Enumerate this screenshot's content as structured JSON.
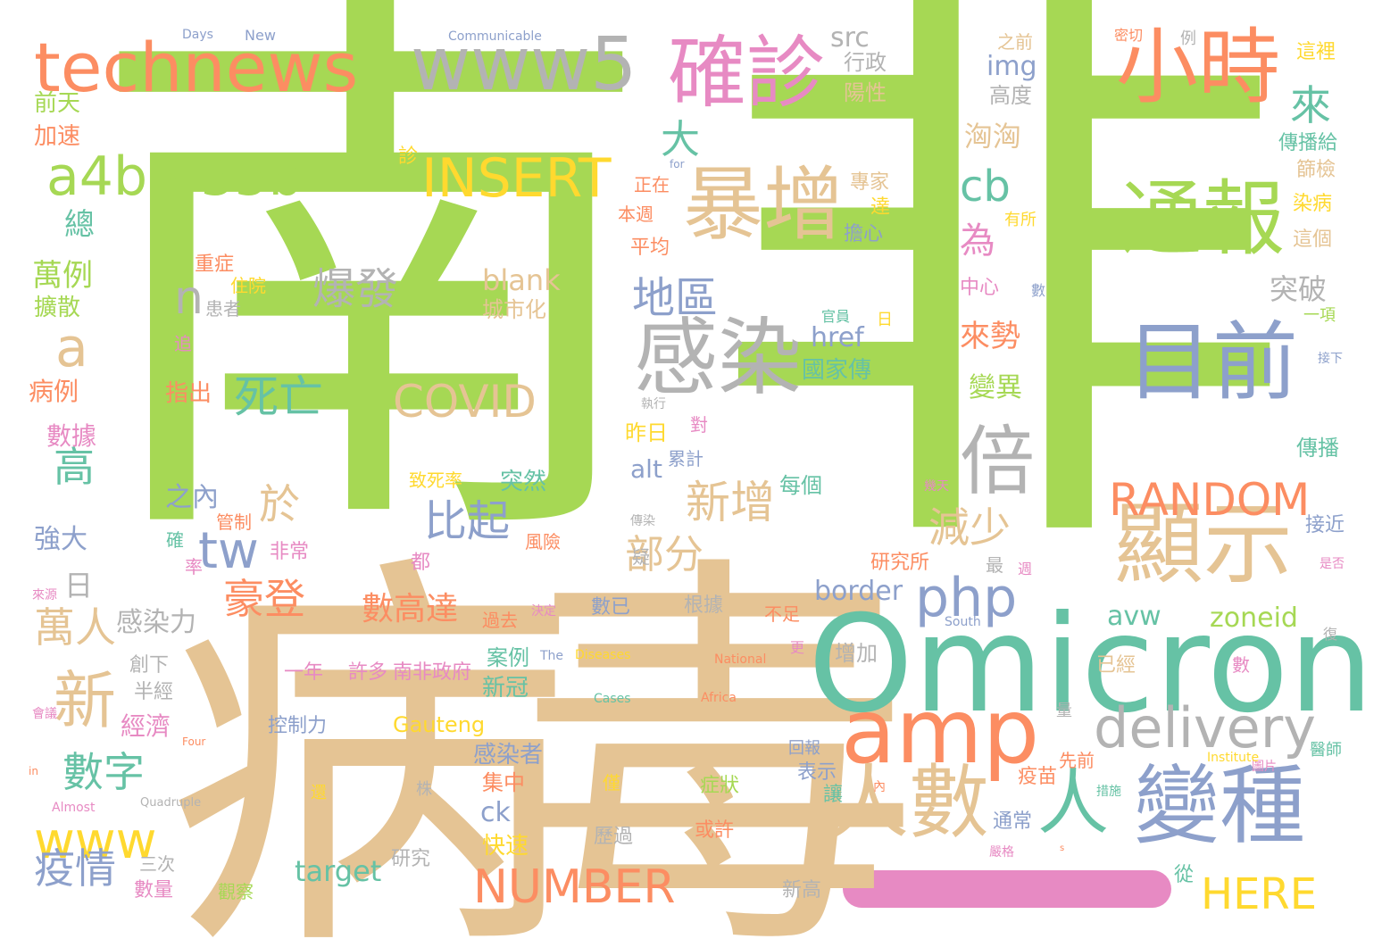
{
  "palette": {
    "green": "#a6d854",
    "tan": "#e5c494",
    "teal": "#66c2a5",
    "orange": "#fc8d62",
    "blue": "#8da0cb",
    "pink": "#e78ac3",
    "gray": "#b3b3b3",
    "yellow": "#ffd92f",
    "background": "#ffffff"
  },
  "words": [
    {
      "text": "南",
      "color": "green"
    },
    {
      "text": "非",
      "color": "green"
    },
    {
      "text": "病",
      "color": "tan"
    },
    {
      "text": "毒",
      "color": "tan"
    },
    {
      "text": "Omicron",
      "color": "teal"
    },
    {
      "text": "technews",
      "color": "orange"
    },
    {
      "text": "www5",
      "color": "gray"
    },
    {
      "text": "確診",
      "color": "pink"
    },
    {
      "text": "小時",
      "color": "orange"
    },
    {
      "text": "a4b3f35b",
      "color": "green"
    },
    {
      "text": "INSERT",
      "color": "yellow"
    },
    {
      "text": "暴增",
      "color": "tan"
    },
    {
      "text": "通報",
      "color": "green"
    },
    {
      "text": "感染",
      "color": "gray"
    },
    {
      "text": "目前",
      "color": "blue"
    },
    {
      "text": "倍",
      "color": "gray"
    },
    {
      "text": "顯示",
      "color": "tan"
    },
    {
      "text": "RANDOM",
      "color": "orange"
    },
    {
      "text": "amp",
      "color": "orange"
    },
    {
      "text": "delivery",
      "color": "gray"
    },
    {
      "text": "人數",
      "color": "tan"
    },
    {
      "text": "變種",
      "color": "blue"
    },
    {
      "text": "人",
      "color": "teal"
    },
    {
      "text": "COVID",
      "color": "tan"
    },
    {
      "text": "NUMBER",
      "color": "orange"
    },
    {
      "text": "HERE",
      "color": "yellow"
    },
    {
      "text": "www",
      "color": "yellow"
    },
    {
      "text": "php",
      "color": "blue"
    },
    {
      "text": "新",
      "color": "tan"
    },
    {
      "text": "a",
      "color": "tan"
    },
    {
      "text": "n",
      "color": "gray"
    },
    {
      "text": "cb",
      "color": "teal"
    },
    {
      "text": "爆發",
      "color": "gray"
    },
    {
      "text": "死亡",
      "color": "teal"
    },
    {
      "text": "tw",
      "color": "blue"
    },
    {
      "text": "地區",
      "color": "blue"
    },
    {
      "text": "新增",
      "color": "tan"
    },
    {
      "text": "比起",
      "color": "blue"
    },
    {
      "text": "部分",
      "color": "tan"
    },
    {
      "text": "豪登",
      "color": "orange"
    },
    {
      "text": "數字",
      "color": "teal"
    },
    {
      "text": "疫情",
      "color": "blue"
    },
    {
      "text": "萬人",
      "color": "tan"
    },
    {
      "text": "高",
      "color": "teal"
    },
    {
      "text": "大",
      "color": "teal"
    },
    {
      "text": "來",
      "color": "teal"
    },
    {
      "text": "為",
      "color": "pink"
    },
    {
      "text": "於",
      "color": "tan"
    },
    {
      "text": "減少",
      "color": "tan"
    },
    {
      "text": "數高達",
      "color": "orange"
    },
    {
      "text": "target",
      "color": "teal"
    },
    {
      "text": "border",
      "color": "blue"
    },
    {
      "text": "zoneid",
      "color": "green"
    },
    {
      "text": "avw",
      "color": "teal"
    },
    {
      "text": "blank",
      "color": "tan"
    },
    {
      "text": "Gauteng",
      "color": "yellow"
    },
    {
      "text": "img",
      "color": "blue"
    },
    {
      "text": "src",
      "color": "gray"
    },
    {
      "text": "href",
      "color": "blue"
    },
    {
      "text": "alt",
      "color": "blue"
    },
    {
      "text": "ck",
      "color": "blue"
    },
    {
      "text": "萬例",
      "color": "green"
    },
    {
      "text": "總",
      "color": "teal"
    },
    {
      "text": "病例",
      "color": "orange"
    },
    {
      "text": "數據",
      "color": "pink"
    },
    {
      "text": "強大",
      "color": "blue"
    },
    {
      "text": "擴散",
      "color": "green"
    },
    {
      "text": "前天",
      "color": "green"
    },
    {
      "text": "加速",
      "color": "orange"
    },
    {
      "text": "日",
      "color": "gray"
    },
    {
      "text": "感染力",
      "color": "gray"
    },
    {
      "text": "創下",
      "color": "gray"
    },
    {
      "text": "半經",
      "color": "gray"
    },
    {
      "text": "經濟",
      "color": "pink"
    },
    {
      "text": "三次",
      "color": "gray"
    },
    {
      "text": "數量",
      "color": "pink"
    },
    {
      "text": "觀察",
      "color": "green"
    },
    {
      "text": "研究",
      "color": "gray"
    },
    {
      "text": "控制力",
      "color": "blue"
    },
    {
      "text": "感染者",
      "color": "blue"
    },
    {
      "text": "集中",
      "color": "orange"
    },
    {
      "text": "快速",
      "color": "yellow"
    },
    {
      "text": "新冠",
      "color": "teal"
    },
    {
      "text": "案例",
      "color": "teal"
    },
    {
      "text": "許多",
      "color": "pink"
    },
    {
      "text": "一年",
      "color": "pink"
    },
    {
      "text": "南非政府",
      "color": "pink"
    },
    {
      "text": "之內",
      "color": "blue"
    },
    {
      "text": "突然",
      "color": "teal"
    },
    {
      "text": "致死率",
      "color": "yellow"
    },
    {
      "text": "風險",
      "color": "orange"
    },
    {
      "text": "非常",
      "color": "pink"
    },
    {
      "text": "管制",
      "color": "orange"
    },
    {
      "text": "率",
      "color": "pink"
    },
    {
      "text": "確",
      "color": "teal"
    },
    {
      "text": "指出",
      "color": "orange"
    },
    {
      "text": "追",
      "color": "pink"
    },
    {
      "text": "患者",
      "color": "gray"
    },
    {
      "text": "住院",
      "color": "yellow"
    },
    {
      "text": "重症",
      "color": "orange"
    },
    {
      "text": "平均",
      "color": "orange"
    },
    {
      "text": "本週",
      "color": "orange"
    },
    {
      "text": "正在",
      "color": "orange"
    },
    {
      "text": "診",
      "color": "yellow"
    },
    {
      "text": "城市化",
      "color": "tan"
    },
    {
      "text": "昨日",
      "color": "yellow"
    },
    {
      "text": "累計",
      "color": "blue"
    },
    {
      "text": "執行",
      "color": "gray"
    },
    {
      "text": "對",
      "color": "pink"
    },
    {
      "text": "每個",
      "color": "teal"
    },
    {
      "text": "國家傳",
      "color": "teal"
    },
    {
      "text": "官員",
      "color": "teal"
    },
    {
      "text": "日",
      "color": "yellow"
    },
    {
      "text": "突破",
      "color": "gray"
    },
    {
      "text": "來勢",
      "color": "orange"
    },
    {
      "text": "變異",
      "color": "green"
    },
    {
      "text": "洶洶",
      "color": "tan"
    },
    {
      "text": "高度",
      "color": "gray"
    },
    {
      "text": "行政",
      "color": "gray"
    },
    {
      "text": "陽性",
      "color": "tan"
    },
    {
      "text": "之前",
      "color": "tan"
    },
    {
      "text": "專家",
      "color": "tan"
    },
    {
      "text": "達",
      "color": "yellow"
    },
    {
      "text": "擔心",
      "color": "blue"
    },
    {
      "text": "中心",
      "color": "pink"
    },
    {
      "text": "數",
      "color": "blue"
    },
    {
      "text": "有所",
      "color": "yellow"
    },
    {
      "text": "密切",
      "color": "orange"
    },
    {
      "text": "例",
      "color": "gray"
    },
    {
      "text": "這裡",
      "color": "yellow"
    },
    {
      "text": "傳播給",
      "color": "teal"
    },
    {
      "text": "篩檢",
      "color": "tan"
    },
    {
      "text": "染病",
      "color": "yellow"
    },
    {
      "text": "這個",
      "color": "tan"
    },
    {
      "text": "一項",
      "color": "green"
    },
    {
      "text": "接下",
      "color": "blue"
    },
    {
      "text": "傳播",
      "color": "teal"
    },
    {
      "text": "接近",
      "color": "blue"
    },
    {
      "text": "是否",
      "color": "pink"
    },
    {
      "text": "幾天",
      "color": "pink"
    },
    {
      "text": "傳染",
      "color": "gray"
    },
    {
      "text": "疑",
      "color": "gray"
    },
    {
      "text": "都",
      "color": "pink"
    },
    {
      "text": "研究所",
      "color": "orange"
    },
    {
      "text": "最",
      "color": "gray"
    },
    {
      "text": "週",
      "color": "pink"
    },
    {
      "text": "數已",
      "color": "blue"
    },
    {
      "text": "根據",
      "color": "gray"
    },
    {
      "text": "不足",
      "color": "orange"
    },
    {
      "text": "過去",
      "color": "orange"
    },
    {
      "text": "決定",
      "color": "pink"
    },
    {
      "text": "更",
      "color": "pink"
    },
    {
      "text": "增加",
      "color": "gray"
    },
    {
      "text": "已經",
      "color": "tan"
    },
    {
      "text": "數",
      "color": "pink"
    },
    {
      "text": "復",
      "color": "gray"
    },
    {
      "text": "量",
      "color": "gray"
    },
    {
      "text": "回報",
      "color": "blue"
    },
    {
      "text": "表示",
      "color": "blue"
    },
    {
      "text": "先前",
      "color": "orange"
    },
    {
      "text": "疫苗",
      "color": "orange"
    },
    {
      "text": "讓",
      "color": "teal"
    },
    {
      "text": "內",
      "color": "orange"
    },
    {
      "text": "措施",
      "color": "teal"
    },
    {
      "text": "症狀",
      "color": "green"
    },
    {
      "text": "或許",
      "color": "orange"
    },
    {
      "text": "僅",
      "color": "yellow"
    },
    {
      "text": "歷過",
      "color": "gray"
    },
    {
      "text": "通常",
      "color": "blue"
    },
    {
      "text": "嚴格",
      "color": "pink"
    },
    {
      "text": "從",
      "color": "teal"
    },
    {
      "text": "株",
      "color": "gray"
    },
    {
      "text": "還",
      "color": "yellow"
    },
    {
      "text": "新高",
      "color": "gray"
    },
    {
      "text": "醫師",
      "color": "teal"
    },
    {
      "text": "圖片",
      "color": "pink"
    },
    {
      "text": "來源",
      "color": "pink"
    },
    {
      "text": "會議",
      "color": "pink"
    },
    {
      "text": "Days",
      "color": "blue"
    },
    {
      "text": "New",
      "color": "blue"
    },
    {
      "text": "Communicable",
      "color": "blue"
    },
    {
      "text": "for",
      "color": "blue"
    },
    {
      "text": "The",
      "color": "blue"
    },
    {
      "text": "Diseases",
      "color": "yellow"
    },
    {
      "text": "National",
      "color": "orange"
    },
    {
      "text": "South",
      "color": "blue"
    },
    {
      "text": "Africa",
      "color": "orange"
    },
    {
      "text": "Cases",
      "color": "teal"
    },
    {
      "text": "Institute",
      "color": "yellow"
    },
    {
      "text": "Four",
      "color": "orange"
    },
    {
      "text": "Quadruple",
      "color": "gray"
    },
    {
      "text": "Almost",
      "color": "pink"
    },
    {
      "text": "in",
      "color": "orange"
    },
    {
      "text": "s",
      "color": "orange"
    }
  ]
}
